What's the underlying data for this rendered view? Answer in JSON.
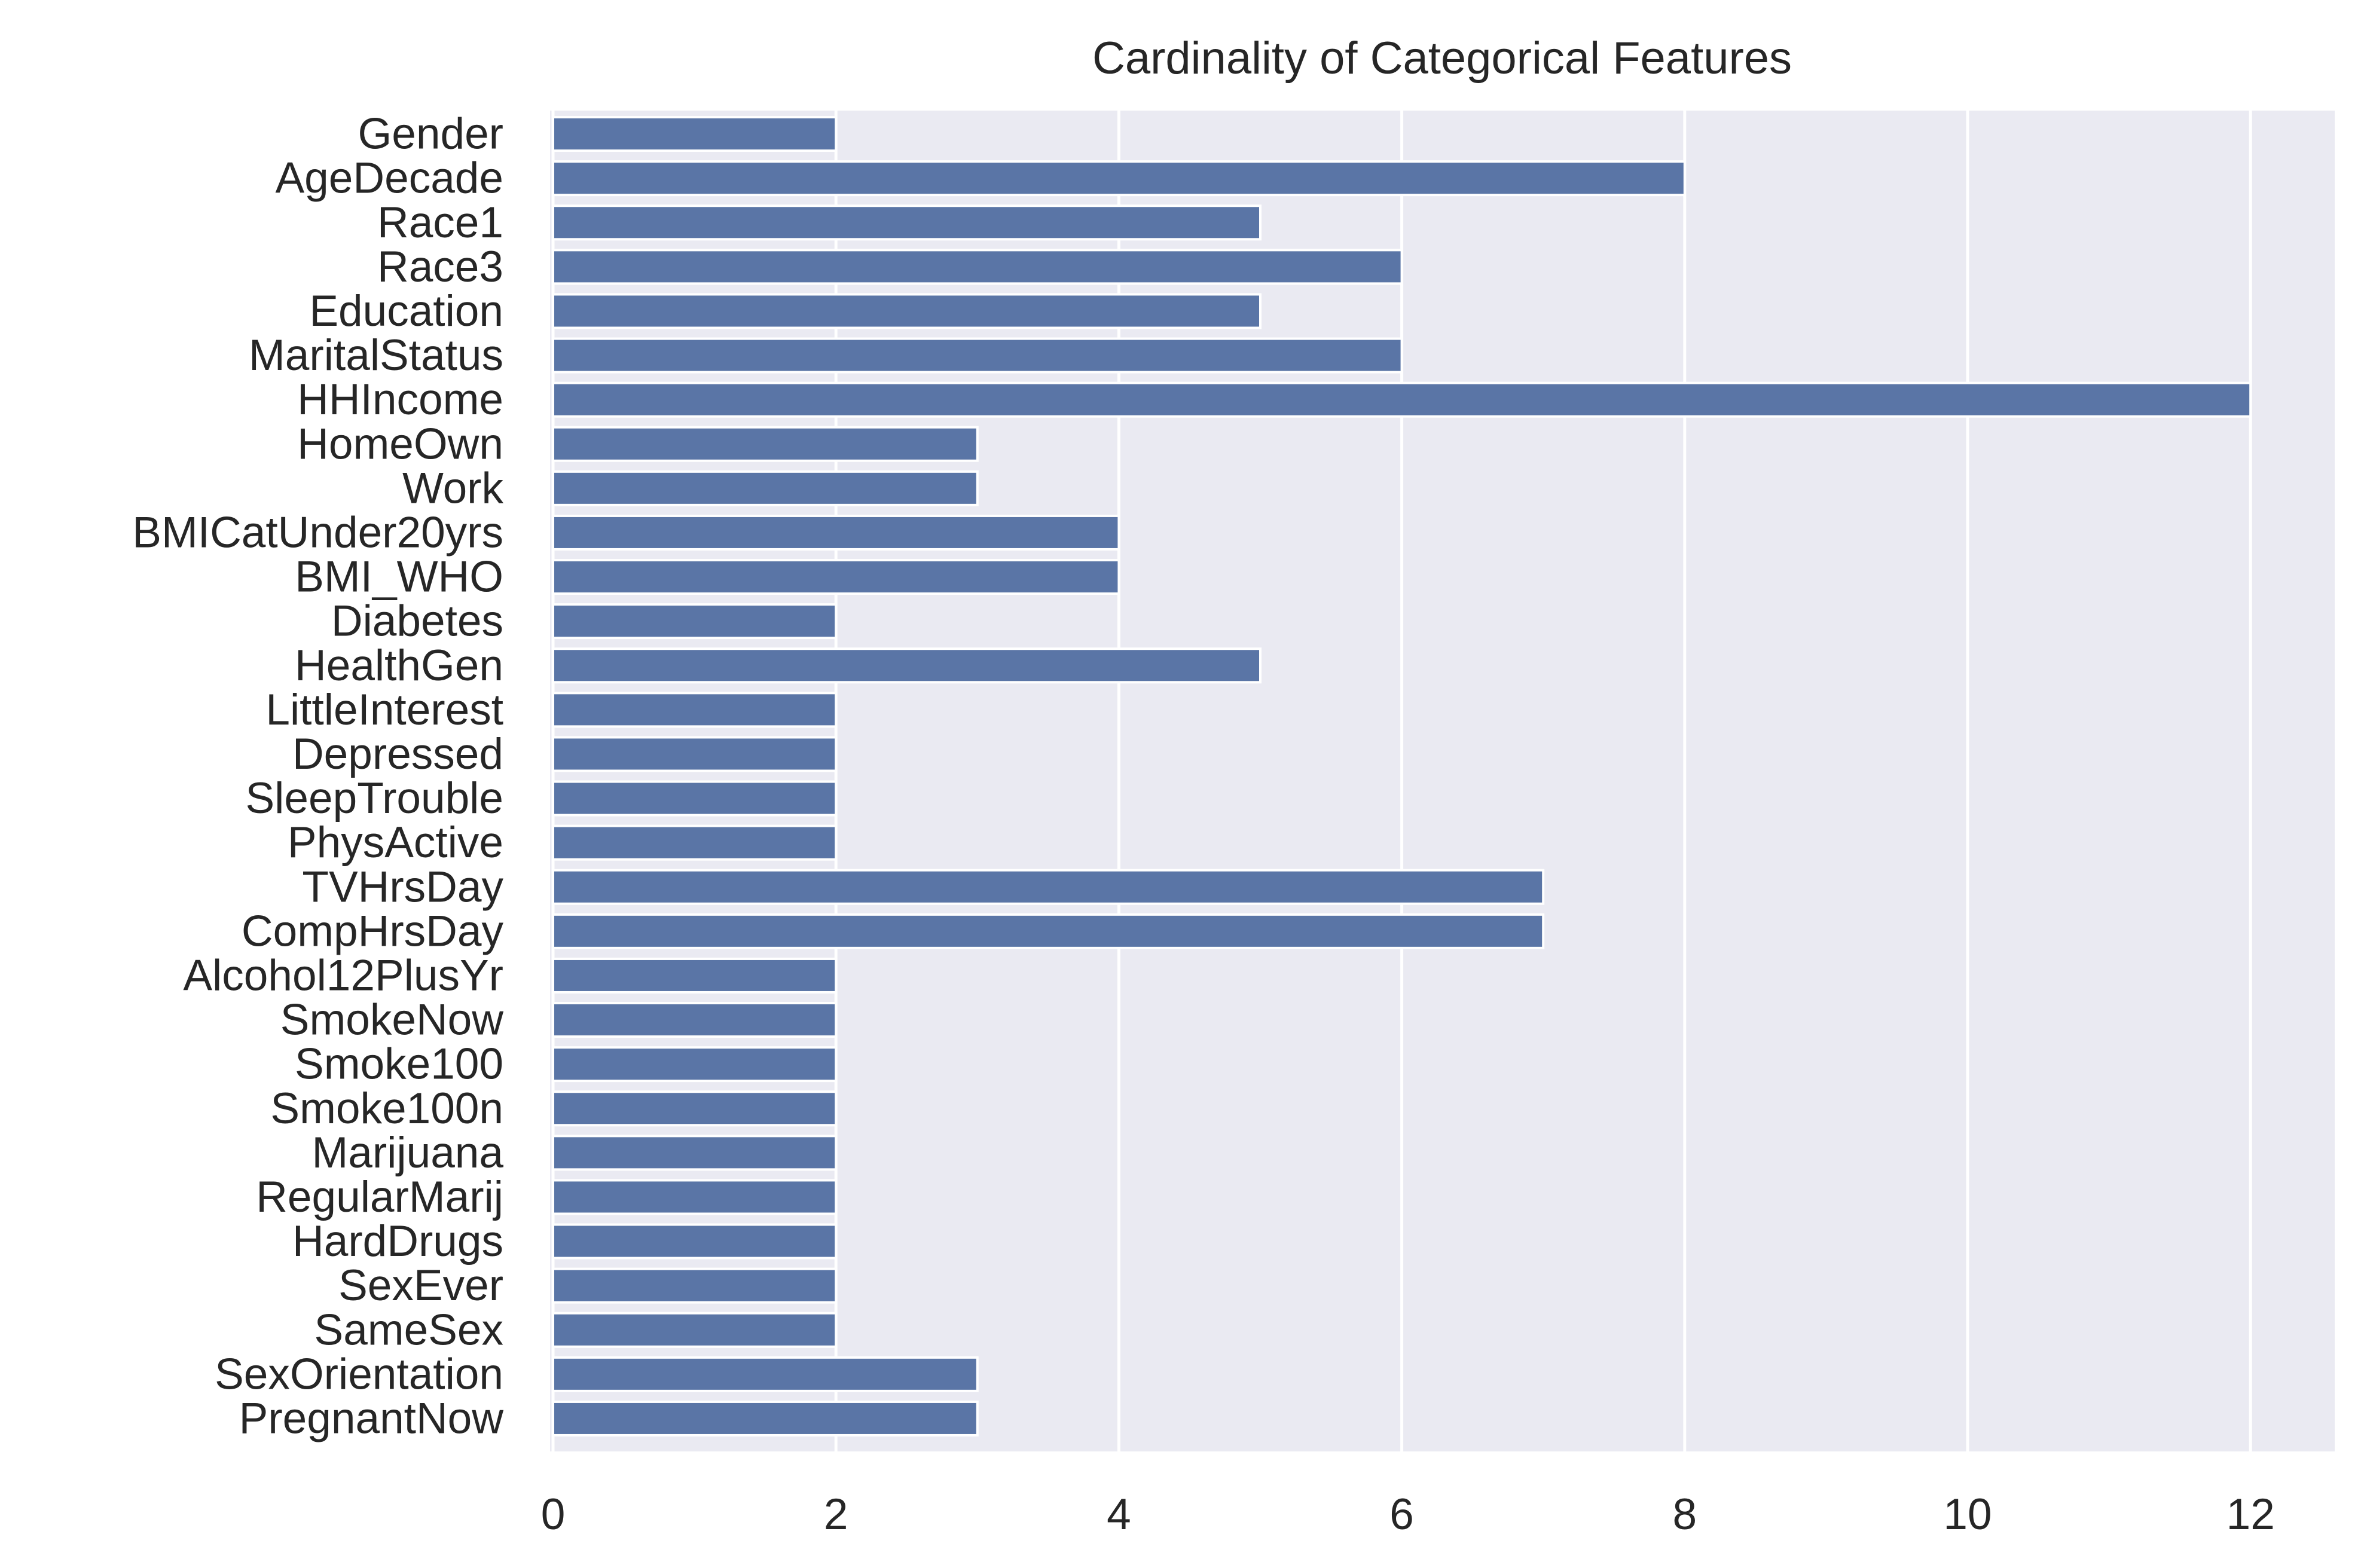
{
  "chart_data": {
    "type": "bar",
    "orientation": "horizontal",
    "title": "Cardinality of Categorical Features",
    "xlabel": "",
    "ylabel": "",
    "xlim": [
      0,
      12.6
    ],
    "xticks": [
      0,
      2,
      4,
      6,
      8,
      10,
      12
    ],
    "grid": true,
    "legend": "none",
    "colors": {
      "bar": "#5a75a6",
      "plot_background": "#eaeaf2",
      "grid": "#ffffff",
      "text": "#262626"
    },
    "categories": [
      "Gender",
      "AgeDecade",
      "Race1",
      "Race3",
      "Education",
      "MaritalStatus",
      "HHIncome",
      "HomeOwn",
      "Work",
      "BMICatUnder20yrs",
      "BMI_WHO",
      "Diabetes",
      "HealthGen",
      "LittleInterest",
      "Depressed",
      "SleepTrouble",
      "PhysActive",
      "TVHrsDay",
      "CompHrsDay",
      "Alcohol12PlusYr",
      "SmokeNow",
      "Smoke100",
      "Smoke100n",
      "Marijuana",
      "RegularMarij",
      "HardDrugs",
      "SexEver",
      "SameSex",
      "SexOrientation",
      "PregnantNow"
    ],
    "values": [
      2,
      8,
      5,
      6,
      5,
      6,
      12,
      3,
      3,
      4,
      4,
      2,
      5,
      2,
      2,
      2,
      2,
      7,
      7,
      2,
      2,
      2,
      2,
      2,
      2,
      2,
      2,
      2,
      3,
      3
    ]
  }
}
